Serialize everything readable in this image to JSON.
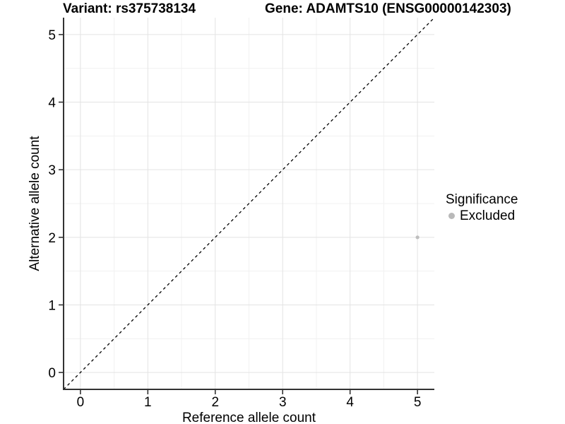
{
  "header": {
    "title_left": "Variant: rs375738134",
    "title_right": "Gene: ADAMTS10 (ENSG00000142303)"
  },
  "chart_data": {
    "type": "scatter",
    "xlabel": "Reference allele count",
    "ylabel": "Alternative allele count",
    "xlim": [
      -0.25,
      5.25
    ],
    "ylim": [
      -0.25,
      5.25
    ],
    "xticks": [
      0,
      1,
      2,
      3,
      4,
      5
    ],
    "yticks": [
      0,
      1,
      2,
      3,
      4,
      5
    ],
    "minor_ticks": [
      0.5,
      1.5,
      2.5,
      3.5,
      4.5
    ],
    "grid": "major+minor",
    "reference_line": {
      "slope": 1,
      "intercept": 0,
      "linetype": "dashed",
      "color": "#000000"
    },
    "series": [
      {
        "name": "Excluded",
        "color": "#bebebe",
        "point_radius": 2.6,
        "points": [
          {
            "x": 5,
            "y": 2
          }
        ]
      }
    ],
    "legend": {
      "title": "Significance",
      "position": "right",
      "items": [
        {
          "label": "Excluded",
          "color": "#b9b9b9"
        }
      ]
    }
  },
  "colors": {
    "background": "#ffffff",
    "grid_major": "#e3e3e3",
    "grid_minor": "#f1f1f1",
    "axis_line": "#333333",
    "tick_mark": "#333333",
    "text": "#000000"
  }
}
